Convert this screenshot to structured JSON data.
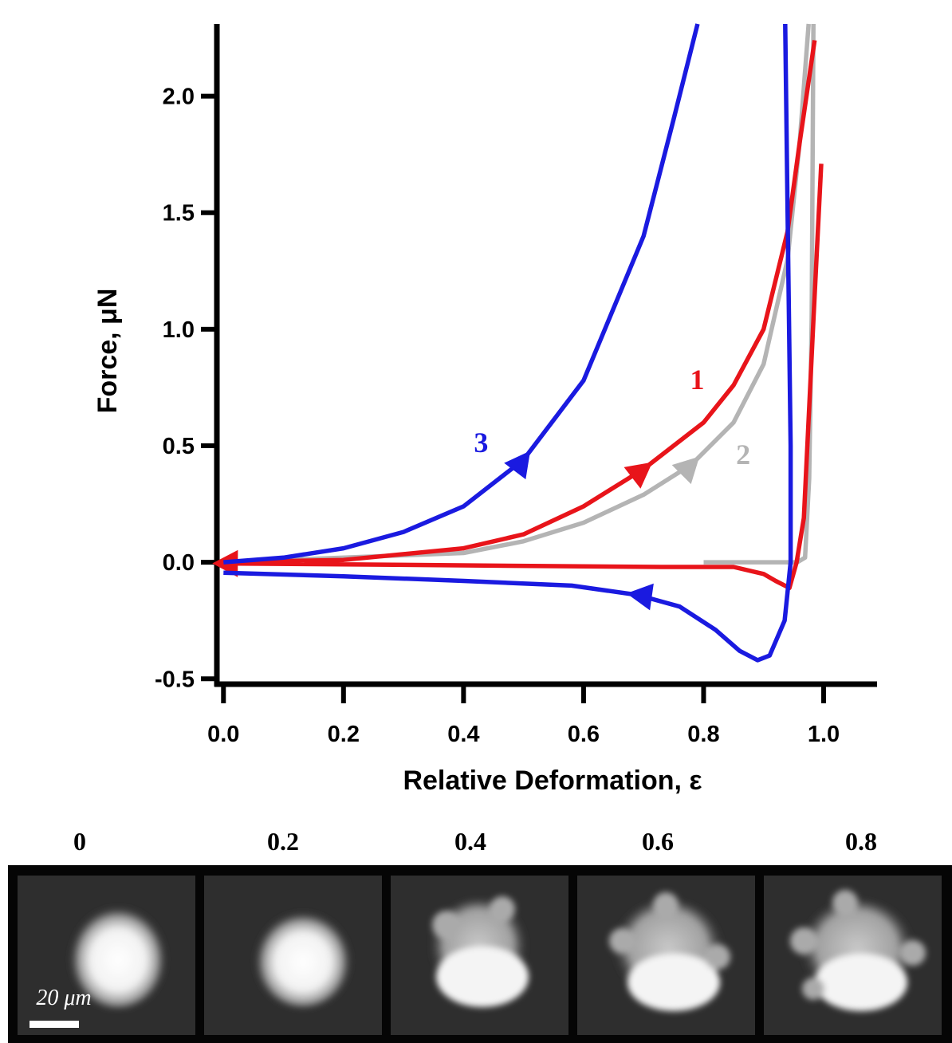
{
  "chart_data": {
    "type": "line",
    "x_label": "Relative Deformation, ε",
    "y_label": "Force, μN",
    "xlim": [
      -0.011,
      1.089
    ],
    "ylim": [
      -0.523,
      2.31
    ],
    "xticks": [
      {
        "value": 0,
        "label": "0.0"
      },
      {
        "value": 0.2,
        "label": "0.2"
      },
      {
        "value": 0.4,
        "label": "0.4"
      },
      {
        "value": 0.6,
        "label": "0.6"
      },
      {
        "value": 0.8,
        "label": "0.8"
      },
      {
        "value": 1,
        "label": "1.0"
      }
    ],
    "yticks": [
      {
        "value": -0.5,
        "label": "-0.5"
      },
      {
        "value": 0,
        "label": "0.0"
      },
      {
        "value": 0.5,
        "label": "0.5"
      },
      {
        "value": 1,
        "label": "1.0"
      },
      {
        "value": 1.5,
        "label": "1.5"
      },
      {
        "value": 2,
        "label": "2.0"
      }
    ],
    "series": [
      {
        "name": "1",
        "color": "#e8141a",
        "x": [
          0,
          0.2,
          0.4,
          0.5,
          0.6,
          0.7,
          0.8,
          0.85,
          0.9,
          0.94,
          0.96,
          0.985,
          null,
          0.996,
          0.983,
          0.967,
          0.955,
          0.943,
          0.92,
          0.9,
          0.85,
          0.73,
          0
        ],
        "values": [
          0,
          0.01,
          0.06,
          0.12,
          0.24,
          0.4,
          0.6,
          0.76,
          1.0,
          1.42,
          1.8,
          2.24,
          null,
          1.71,
          1.04,
          0.19,
          0.0,
          -0.11,
          -0.08,
          -0.05,
          -0.02,
          -0.02,
          -0.005
        ]
      },
      {
        "name": "2",
        "color": "#b4b4b4",
        "x": [
          0,
          0.4,
          0.5,
          0.6,
          0.7,
          0.78,
          0.85,
          0.9,
          0.94,
          0.96,
          0.975,
          null,
          0.983,
          0.98,
          0.976,
          0.969,
          0.956,
          0.8
        ],
        "values": [
          0,
          0.04,
          0.09,
          0.17,
          0.29,
          0.42,
          0.6,
          0.85,
          1.3,
          1.8,
          2.31,
          null,
          2.31,
          1.04,
          0.36,
          0.02,
          0,
          0
        ]
      },
      {
        "name": "3",
        "color": "#1a1ae0",
        "x": [
          0,
          0.1,
          0.2,
          0.3,
          0.4,
          0.5,
          0.6,
          0.7,
          0.75,
          0.79,
          null,
          0.936,
          0.94,
          0.945,
          0.945,
          0.935,
          0.91,
          0.89,
          0.86,
          0.82,
          0.76,
          0.69,
          0.58,
          0.4,
          0.2,
          0
        ],
        "values": [
          0,
          0.02,
          0.06,
          0.13,
          0.24,
          0.44,
          0.78,
          1.4,
          1.9,
          2.31,
          null,
          2.31,
          1.5,
          0.5,
          0,
          -0.25,
          -0.4,
          -0.42,
          -0.38,
          -0.29,
          -0.19,
          -0.14,
          -0.1,
          -0.08,
          -0.06,
          -0.045
        ]
      }
    ]
  },
  "panels": {
    "labels": [
      "0",
      "0.2",
      "0.4",
      "0.6",
      "0.8"
    ],
    "scale_bar": "20 μm"
  }
}
